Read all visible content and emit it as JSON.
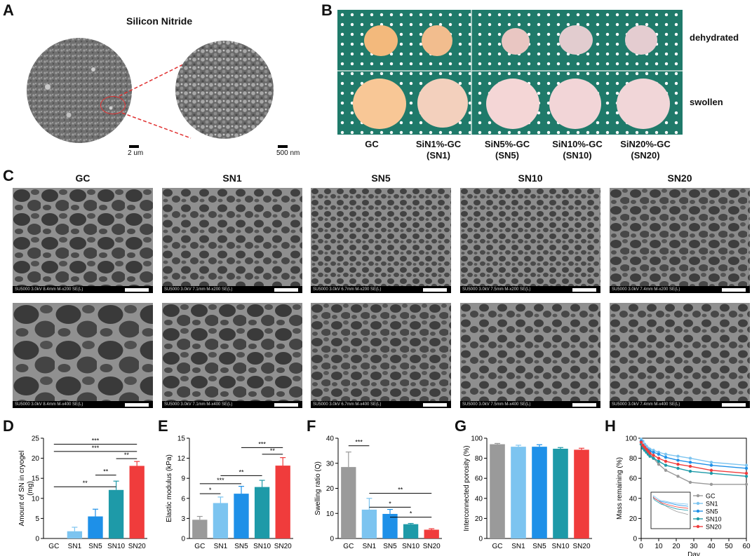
{
  "panels": {
    "A": "A",
    "B": "B",
    "C": "C",
    "D": "D",
    "E": "E",
    "F": "F",
    "G": "G",
    "H": "H"
  },
  "panelA": {
    "title": "Silicon Nitride",
    "scale1": "2 um",
    "scale2": "500 nm"
  },
  "panelB": {
    "row_labels": [
      "dehydrated",
      "swollen"
    ],
    "samples": [
      "GC",
      "SiN1%-GC\n(SN1)",
      "SiN5%-GC\n(SN5)",
      "SiN10%-GC\n(SN10)",
      "SiN20%-GC\n(SN20)"
    ],
    "colors": {
      "board": "#1f7a6a",
      "dot": "#ffffff"
    }
  },
  "panelC": {
    "titles": [
      "GC",
      "SN1",
      "SN5",
      "SN10",
      "SN20"
    ],
    "info_row1": [
      "SU5000 3.0kV 8.4mm M-x200 SE(L)",
      "SU5000 3.0kV 7.1mm M-x200 SE(L)",
      "SU5000 3.0kV 6.7mm M-x200 SE(L)",
      "SU5000 3.0kV 7.5mm M-x200 SE(L)",
      "SU5000 3.0kV 7.4mm M-x200 SE(L)"
    ],
    "info_row2": [
      "SU5000 3.0kV 8.4mm M-x400 SE(L)",
      "SU5000 3.0kV 7.1mm M-x400 SE(L)",
      "SU5000 3.0kV 6.7mm M-x400 SE(L)",
      "SU5000 3.0kV 7.5mm M-x400 SE(L)",
      "SU5000 3.0kV 7.4mm M-x400 SE(L)"
    ]
  },
  "chart_data": [
    {
      "panel": "D",
      "type": "bar",
      "categories": [
        "GC",
        "SN1",
        "SN5",
        "SN10",
        "SN20"
      ],
      "values": [
        0,
        1.8,
        5.5,
        12.1,
        18.1
      ],
      "errors": [
        0,
        1.0,
        1.8,
        2.2,
        1.1
      ],
      "colors": [
        "#9a9a9a",
        "#7cc4f0",
        "#1e90e8",
        "#1e9aa8",
        "#f03c3c"
      ],
      "ylabel": "Amount of SN in cryogel\n(mg)",
      "ylim": [
        0,
        25
      ],
      "yticks": [
        0,
        5,
        10,
        15,
        20,
        25
      ],
      "significance": [
        {
          "from": 0,
          "to": 3,
          "label": "**"
        },
        {
          "from": 2,
          "to": 3,
          "label": "**"
        },
        {
          "from": 3,
          "to": 4,
          "label": "**"
        },
        {
          "from": 0,
          "to": 4,
          "label": "***"
        },
        {
          "from": 0,
          "to": 4,
          "label": "***"
        }
      ]
    },
    {
      "panel": "E",
      "type": "bar",
      "categories": [
        "GC",
        "SN1",
        "SN5",
        "SN10",
        "SN20"
      ],
      "values": [
        2.8,
        5.3,
        6.7,
        7.7,
        10.9
      ],
      "errors": [
        0.5,
        0.9,
        1.1,
        1.0,
        1.2
      ],
      "colors": [
        "#9a9a9a",
        "#7cc4f0",
        "#1e90e8",
        "#1e9aa8",
        "#f03c3c"
      ],
      "ylabel": "Elastic modulus (kPa)",
      "ylim": [
        0,
        15
      ],
      "yticks": [
        0,
        3,
        6,
        9,
        12,
        15
      ],
      "significance": [
        {
          "from": 0,
          "to": 1,
          "label": "*"
        },
        {
          "from": 0,
          "to": 2,
          "label": "***"
        },
        {
          "from": 1,
          "to": 3,
          "label": "**"
        },
        {
          "from": 3,
          "to": 4,
          "label": "**"
        },
        {
          "from": 2,
          "to": 4,
          "label": "***"
        }
      ]
    },
    {
      "panel": "F",
      "type": "bar",
      "categories": [
        "GC",
        "SN1",
        "SN5",
        "SN10",
        "SN20"
      ],
      "values": [
        28.5,
        11.5,
        9.8,
        5.7,
        3.5
      ],
      "errors": [
        6.0,
        4.5,
        1.8,
        0.3,
        0.4
      ],
      "colors": [
        "#9a9a9a",
        "#7cc4f0",
        "#1e90e8",
        "#1e9aa8",
        "#f03c3c"
      ],
      "ylabel": "Swelling ratio (Q)",
      "ylim": [
        0,
        40
      ],
      "yticks": [
        0,
        10,
        20,
        30,
        40
      ],
      "significance": [
        {
          "from": 0,
          "to": 1,
          "label": "***"
        },
        {
          "from": 1,
          "to": 4,
          "label": "**"
        },
        {
          "from": 1,
          "to": 3,
          "label": "*"
        },
        {
          "from": 2,
          "to": 4,
          "label": "*"
        }
      ]
    },
    {
      "panel": "G",
      "type": "bar",
      "categories": [
        "GC",
        "SN1",
        "SN5",
        "SN10",
        "SN20"
      ],
      "values": [
        94,
        91.5,
        91.5,
        89.5,
        88.5
      ],
      "errors": [
        0.8,
        1.5,
        2.0,
        1.2,
        1.5
      ],
      "colors": [
        "#9a9a9a",
        "#7cc4f0",
        "#1e90e8",
        "#1e9aa8",
        "#f03c3c"
      ],
      "ylabel": "Interconnected porosity (%)",
      "ylim": [
        0,
        100
      ],
      "yticks": [
        0,
        20,
        40,
        60,
        80,
        100
      ]
    },
    {
      "panel": "H",
      "type": "line",
      "x": [
        0,
        1,
        2,
        3,
        4,
        5,
        7,
        10,
        14,
        21,
        28,
        40,
        60
      ],
      "series": [
        {
          "name": "GC",
          "color": "#9a9a9a",
          "values": [
            97,
            93,
            91,
            89,
            87,
            84,
            80,
            74,
            68,
            62,
            56,
            54,
            54
          ]
        },
        {
          "name": "SN1",
          "color": "#7cc4f0",
          "values": [
            99,
            97,
            94,
            92,
            90,
            89,
            88,
            86,
            84,
            82,
            80,
            76,
            73
          ]
        },
        {
          "name": "SN5",
          "color": "#1e90e8",
          "values": [
            97,
            93,
            91,
            89,
            88,
            87,
            86,
            84,
            81,
            78,
            76,
            73,
            70
          ]
        },
        {
          "name": "SN10",
          "color": "#1e9aa8",
          "values": [
            94,
            90,
            88,
            86,
            84,
            82,
            80,
            77,
            73,
            70,
            67,
            65,
            62
          ]
        },
        {
          "name": "SN20",
          "color": "#f03c3c",
          "values": [
            96,
            93,
            91,
            89,
            87,
            85,
            83,
            80,
            77,
            74,
            72,
            68,
            65
          ]
        }
      ],
      "xlabel": "Day",
      "ylabel": "Mass remaining (%)",
      "xlim": [
        0,
        60
      ],
      "xticks": [
        0,
        10,
        20,
        30,
        40,
        50,
        60
      ],
      "ylim": [
        0,
        100
      ],
      "yticks": [
        0,
        20,
        40,
        60,
        80,
        100
      ],
      "legend": "inside bottom-right, with an inset plot"
    }
  ]
}
